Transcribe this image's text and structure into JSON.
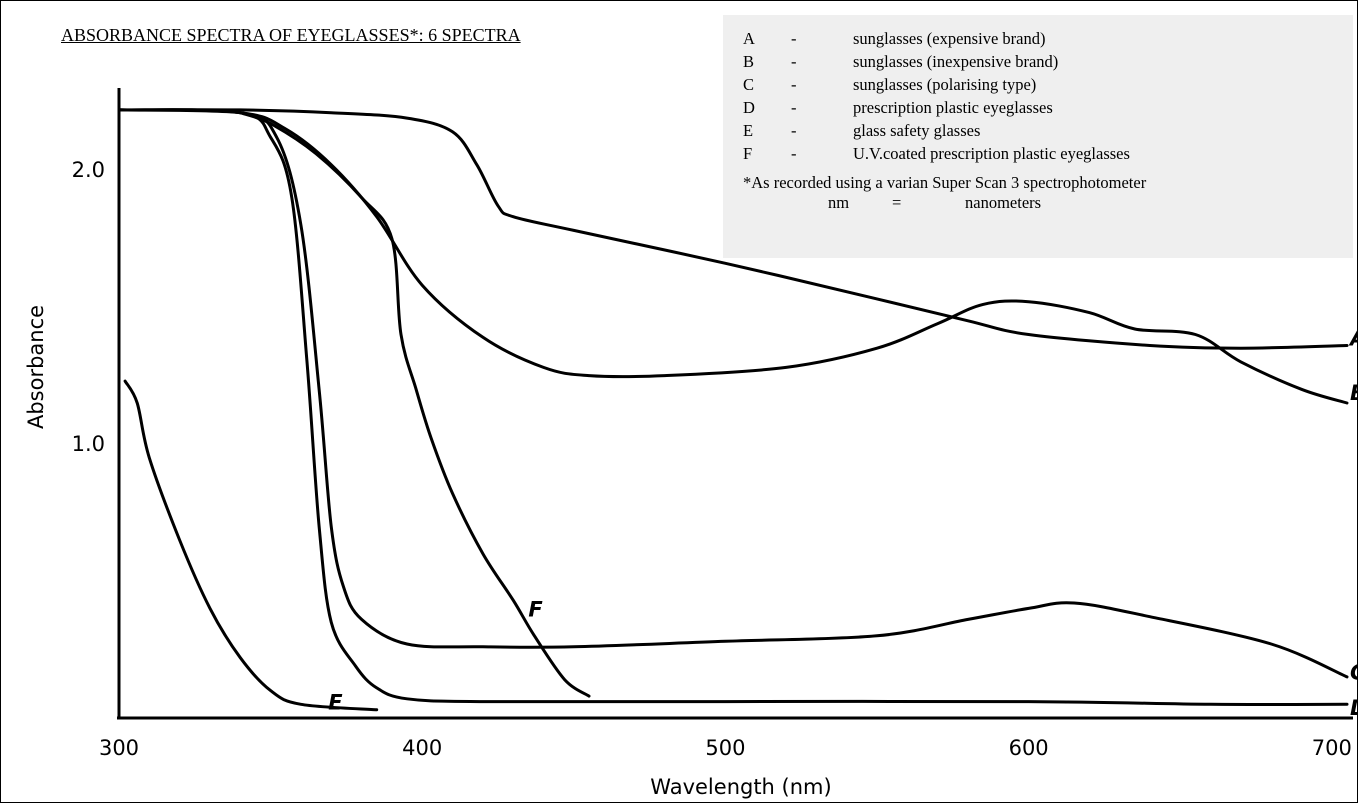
{
  "chart_data": {
    "type": "line",
    "title": "ABSORBANCE SPECTRA OF EYEGLASSES*:  6 SPECTRA",
    "xlabel": "Wavelength (nm)",
    "ylabel": "Absorbance",
    "xlim": [
      300,
      705
    ],
    "ylim": [
      0,
      2.3
    ],
    "x_ticks": [
      "300",
      "400",
      "500",
      "600",
      "700"
    ],
    "x_tick_values": [
      300,
      400,
      500,
      600,
      700
    ],
    "y_ticks": [
      "1.0",
      "2.0"
    ],
    "y_tick_values": [
      1.0,
      2.0
    ],
    "grid": false,
    "legend_placement": "top-right",
    "series": [
      {
        "name": "A",
        "points": [
          [
            300,
            2.22
          ],
          [
            340,
            2.22
          ],
          [
            370,
            2.21
          ],
          [
            395,
            2.19
          ],
          [
            410,
            2.14
          ],
          [
            418,
            2.02
          ],
          [
            425,
            1.87
          ],
          [
            430,
            1.83
          ],
          [
            450,
            1.78
          ],
          [
            500,
            1.66
          ],
          [
            550,
            1.53
          ],
          [
            580,
            1.45
          ],
          [
            600,
            1.4
          ],
          [
            640,
            1.36
          ],
          [
            670,
            1.35
          ],
          [
            705,
            1.36
          ]
        ]
      },
      {
        "name": "B",
        "points": [
          [
            300,
            2.22
          ],
          [
            340,
            2.21
          ],
          [
            355,
            2.15
          ],
          [
            370,
            2.02
          ],
          [
            385,
            1.83
          ],
          [
            400,
            1.58
          ],
          [
            420,
            1.39
          ],
          [
            440,
            1.28
          ],
          [
            455,
            1.25
          ],
          [
            480,
            1.25
          ],
          [
            520,
            1.28
          ],
          [
            550,
            1.35
          ],
          [
            570,
            1.44
          ],
          [
            585,
            1.51
          ],
          [
            600,
            1.52
          ],
          [
            620,
            1.48
          ],
          [
            635,
            1.42
          ],
          [
            655,
            1.4
          ],
          [
            670,
            1.3
          ],
          [
            690,
            1.2
          ],
          [
            705,
            1.15
          ]
        ]
      },
      {
        "name": "C",
        "points": [
          [
            300,
            2.22
          ],
          [
            340,
            2.21
          ],
          [
            352,
            2.12
          ],
          [
            360,
            1.8
          ],
          [
            366,
            1.2
          ],
          [
            370,
            0.7
          ],
          [
            374,
            0.48
          ],
          [
            380,
            0.36
          ],
          [
            395,
            0.27
          ],
          [
            420,
            0.26
          ],
          [
            450,
            0.26
          ],
          [
            500,
            0.28
          ],
          [
            550,
            0.3
          ],
          [
            580,
            0.36
          ],
          [
            600,
            0.4
          ],
          [
            615,
            0.42
          ],
          [
            640,
            0.37
          ],
          [
            680,
            0.27
          ],
          [
            705,
            0.15
          ]
        ]
      },
      {
        "name": "D",
        "points": [
          [
            300,
            2.22
          ],
          [
            340,
            2.21
          ],
          [
            350,
            2.12
          ],
          [
            357,
            1.9
          ],
          [
            362,
            1.3
          ],
          [
            366,
            0.7
          ],
          [
            370,
            0.35
          ],
          [
            378,
            0.19
          ],
          [
            385,
            0.11
          ],
          [
            395,
            0.07
          ],
          [
            420,
            0.06
          ],
          [
            500,
            0.06
          ],
          [
            600,
            0.06
          ],
          [
            660,
            0.05
          ],
          [
            705,
            0.05
          ]
        ]
      },
      {
        "name": "E",
        "points": [
          [
            302,
            1.23
          ],
          [
            306,
            1.15
          ],
          [
            310,
            0.95
          ],
          [
            320,
            0.65
          ],
          [
            330,
            0.4
          ],
          [
            340,
            0.22
          ],
          [
            350,
            0.1
          ],
          [
            360,
            0.05
          ],
          [
            385,
            0.03
          ]
        ]
      },
      {
        "name": "F",
        "points": [
          [
            340,
            2.21
          ],
          [
            350,
            2.17
          ],
          [
            365,
            2.06
          ],
          [
            380,
            1.9
          ],
          [
            390,
            1.75
          ],
          [
            393,
            1.4
          ],
          [
            398,
            1.2
          ],
          [
            403,
            1.02
          ],
          [
            410,
            0.82
          ],
          [
            420,
            0.6
          ],
          [
            430,
            0.43
          ],
          [
            437,
            0.3
          ],
          [
            447,
            0.14
          ],
          [
            455,
            0.08
          ]
        ]
      }
    ],
    "series_labels": [
      {
        "text": "A",
        "x": 706,
        "y": 1.39
      },
      {
        "text": "B",
        "x": 706,
        "y": 1.19
      },
      {
        "text": "C",
        "x": 706,
        "y": 0.17
      },
      {
        "text": "D",
        "x": 706,
        "y": 0.04
      },
      {
        "text": "E",
        "x": 369,
        "y": 0.06
      },
      {
        "text": "F",
        "x": 435,
        "y": 0.4
      }
    ]
  },
  "legend": {
    "items": [
      {
        "letter": "A",
        "dash": "-",
        "desc": "sunglasses (expensive brand)"
      },
      {
        "letter": "B",
        "dash": "-",
        "desc": "sunglasses (inexpensive brand)"
      },
      {
        "letter": "C",
        "dash": "-",
        "desc": "sunglasses (polarising type)"
      },
      {
        "letter": "D",
        "dash": "-",
        "desc": "prescription plastic eyeglasses"
      },
      {
        "letter": "E",
        "dash": "-",
        "desc": "glass safety glasses"
      },
      {
        "letter": "F",
        "dash": "-",
        "desc": "U.V.coated prescription plastic eyeglasses"
      }
    ],
    "note": "*As recorded using a varian Super Scan 3 spectrophotometer",
    "unit_abbr": "nm",
    "unit_eq": "=",
    "unit_name": "nanometers"
  }
}
